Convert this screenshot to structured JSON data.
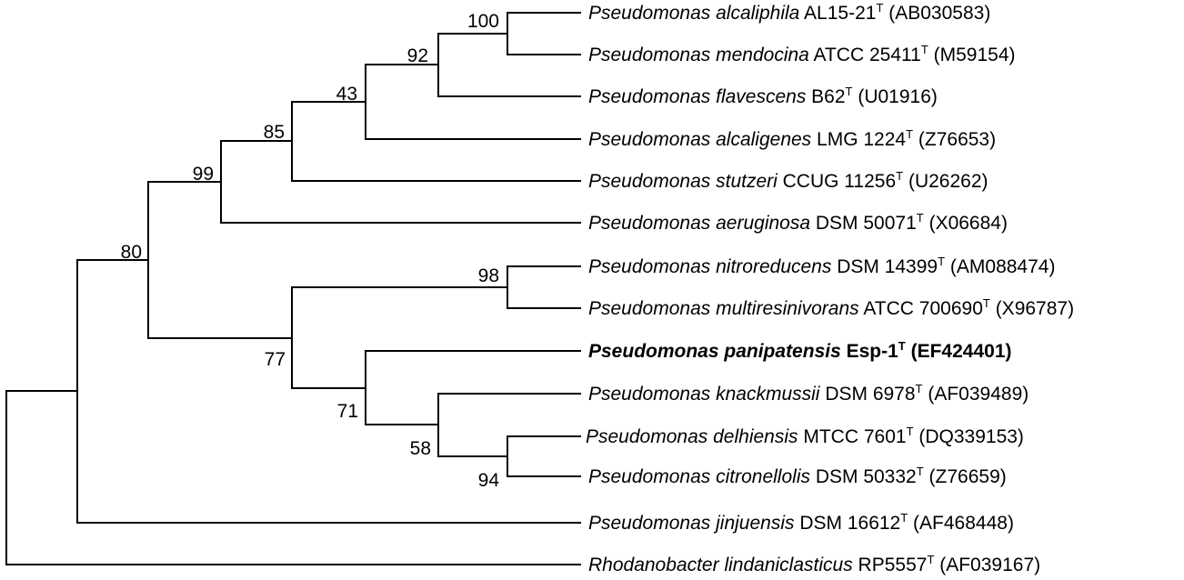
{
  "taxa": [
    {
      "genus": "Pseudomonas",
      "species": "alcaliphila",
      "strain": "AL15-21",
      "sup": "T",
      "accession": "(AB030583)",
      "highlight": false
    },
    {
      "genus": "Pseudomonas",
      "species": "mendocina",
      "strain": "ATCC 25411",
      "sup": "T",
      "accession": "(M59154)",
      "highlight": false
    },
    {
      "genus": "Pseudomonas",
      "species": "flavescens",
      "strain": "B62",
      "sup": "T",
      "accession": "(U01916)",
      "highlight": false
    },
    {
      "genus": "Pseudomonas",
      "species": "alcaligenes",
      "strain": "LMG 1224",
      "sup": "T",
      "accession": "(Z76653)",
      "highlight": false
    },
    {
      "genus": "Pseudomonas",
      "species": "stutzeri",
      "strain": "CCUG 11256",
      "sup": "T",
      "accession": "(U26262)",
      "highlight": false
    },
    {
      "genus": "Pseudomonas",
      "species": "aeruginosa",
      "strain": "DSM 50071",
      "sup": "T",
      "accession": "(X06684)",
      "highlight": false
    },
    {
      "genus": "Pseudomonas",
      "species": "nitroreducens",
      "strain": "DSM 14399",
      "sup": "T",
      "accession": "(AM088474)",
      "highlight": false
    },
    {
      "genus": "Pseudomonas",
      "species": "multiresinivorans",
      "strain": "ATCC 700690",
      "sup": "T",
      "accession": "(X96787)",
      "highlight": false
    },
    {
      "genus": "Pseudomonas",
      "species": "panipatensis",
      "strain": "Esp-1",
      "sup": "T",
      "accession": "(EF424401)",
      "highlight": true
    },
    {
      "genus": "Pseudomonas",
      "species": "knackmussii",
      "strain": "DSM 6978",
      "sup": "T",
      "accession": "(AF039489)",
      "highlight": false
    },
    {
      "genus": "Pseudomonas",
      "species": "delhiensis",
      "strain": "MTCC 7601",
      "sup": "T",
      "accession": "(DQ339153)",
      "highlight": false
    },
    {
      "genus": "Pseudomonas",
      "species": "citronellolis",
      "strain": "DSM 50332",
      "sup": "T",
      "accession": "(Z76659)",
      "highlight": false
    },
    {
      "genus": "Pseudomonas",
      "species": "jinjuensis",
      "strain": "DSM 16612",
      "sup": "T",
      "accession": "(AF468448)",
      "highlight": false
    },
    {
      "genus": "Rhodanobacter",
      "species": "lindaniclasticus",
      "strain": "RP5557",
      "sup": "T",
      "accession": "(AF039167)",
      "highlight": false
    }
  ],
  "bootstrap": [
    "100",
    "92",
    "43",
    "85",
    "99",
    "80",
    "98",
    "77",
    "71",
    "58",
    "94"
  ]
}
